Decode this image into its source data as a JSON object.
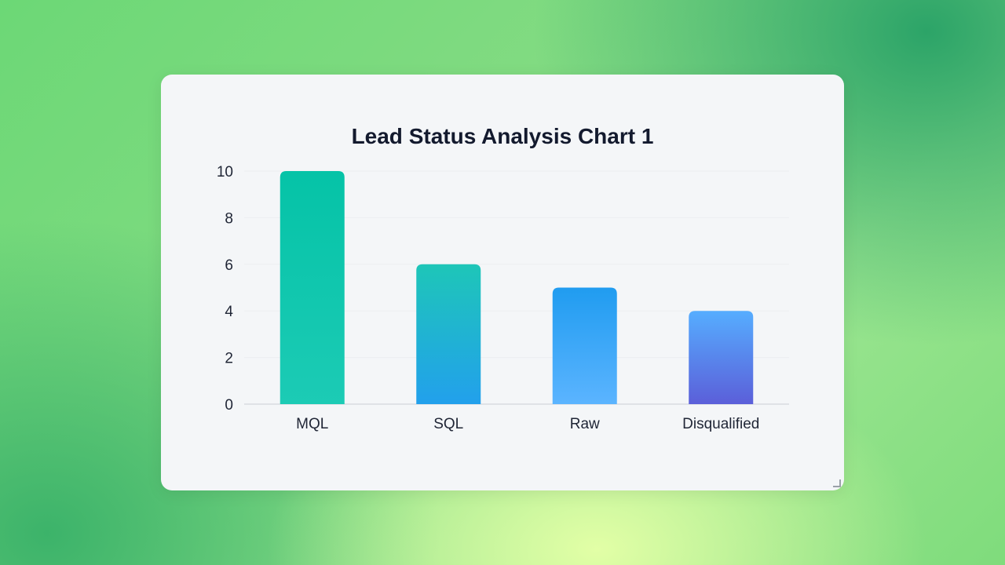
{
  "chart_data": {
    "type": "bar",
    "title": "Lead Status Analysis Chart 1",
    "categories": [
      "MQL",
      "SQL",
      "Raw",
      "Disqualified"
    ],
    "values": [
      10,
      6,
      5,
      4
    ],
    "xlabel": "",
    "ylabel": "",
    "ylim": [
      0,
      10
    ],
    "yticks": [
      "0",
      "2",
      "4",
      "6",
      "8",
      "10"
    ],
    "grid": true,
    "bar_gradients": [
      [
        "#05c3a7",
        "#1ccbb5"
      ],
      [
        "#1ec6b8",
        "#22a0ec"
      ],
      [
        "#209cf0",
        "#5bb4ff"
      ],
      [
        "#56adff",
        "#5b5fd9"
      ]
    ]
  }
}
